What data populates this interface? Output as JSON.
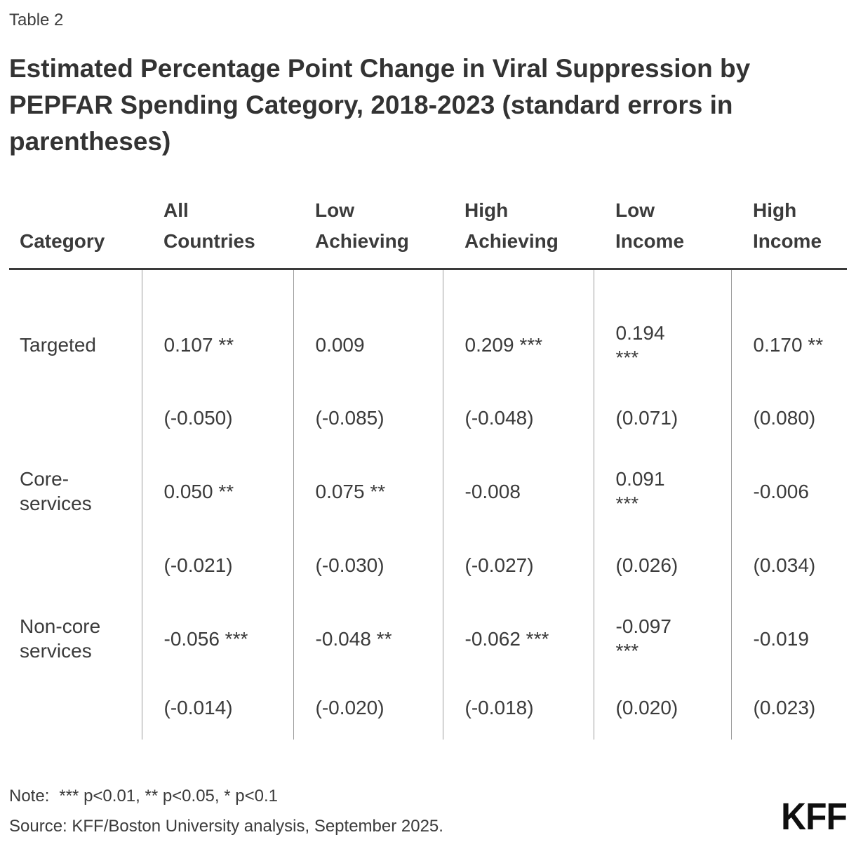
{
  "eyebrow": "Table 2",
  "title": "Estimated Percentage Point Change in Viral Suppression by\nPEPFAR Spending Category, 2018-2023 (standard errors in\nparentheses)",
  "table": {
    "headers": [
      "Category",
      "All\nCountries",
      "Low\nAchieving",
      "High\nAchieving",
      "Low\nIncome",
      "High\nIncome"
    ],
    "rows": [
      {
        "label": "Targeted",
        "cells": [
          "0.107 **",
          "0.009",
          "0.209 ***",
          "0.194\n***",
          "0.170 **"
        ]
      },
      {
        "label": "",
        "cells": [
          "(-0.050)",
          "(-0.085)",
          "(-0.048)",
          "(0.071)",
          "(0.080)"
        ]
      },
      {
        "label": "Core-\nservices",
        "cells": [
          "0.050 **",
          "0.075 **",
          "-0.008",
          "0.091\n***",
          "-0.006"
        ]
      },
      {
        "label": "",
        "cells": [
          "(-0.021)",
          "(-0.030)",
          "(-0.027)",
          "(0.026)",
          "(0.034)"
        ]
      },
      {
        "label": "Non-core\nservices",
        "cells": [
          "-0.056 ***",
          "-0.048 **",
          "-0.062 ***",
          "-0.097\n***",
          "-0.019"
        ]
      },
      {
        "label": "",
        "cells": [
          "(-0.014)",
          "(-0.020)",
          "(-0.018)",
          "(0.020)",
          "(0.023)"
        ]
      }
    ]
  },
  "footer": {
    "note_label": "Note:",
    "note_text": "*** p<0.01, ** p<0.05, * p<0.1",
    "source": "Source: KFF/Boston University analysis, September 2025.",
    "logo": "KFF"
  },
  "chart_data": {
    "type": "table",
    "title": "Estimated Percentage Point Change in Viral Suppression by PEPFAR Spending Category, 2018-2023 (standard errors in parentheses)",
    "table_number": "Table 2",
    "columns": [
      "All Countries",
      "Low Achieving",
      "High Achieving",
      "Low Income",
      "High Income"
    ],
    "rows": [
      {
        "category": "Targeted",
        "estimates": [
          0.107,
          0.009,
          0.209,
          0.194,
          0.17
        ],
        "significance": [
          "**",
          "",
          "***",
          "***",
          "**"
        ],
        "standard_errors_displayed": [
          "(-0.050)",
          "(-0.085)",
          "(-0.048)",
          "(0.071)",
          "(0.080)"
        ]
      },
      {
        "category": "Core-services",
        "estimates": [
          0.05,
          0.075,
          -0.008,
          0.091,
          -0.006
        ],
        "significance": [
          "**",
          "**",
          "",
          "***",
          ""
        ],
        "standard_errors_displayed": [
          "(-0.021)",
          "(-0.030)",
          "(-0.027)",
          "(0.026)",
          "(0.034)"
        ]
      },
      {
        "category": "Non-core services",
        "estimates": [
          -0.056,
          -0.048,
          -0.062,
          -0.097,
          -0.019
        ],
        "significance": [
          "***",
          "**",
          "***",
          "***",
          ""
        ],
        "standard_errors_displayed": [
          "(-0.014)",
          "(-0.020)",
          "(-0.018)",
          "(0.020)",
          "(0.023)"
        ]
      }
    ],
    "note": "*** p<0.01, ** p<0.05, * p<0.1",
    "source": "KFF/Boston University analysis, September 2025"
  }
}
